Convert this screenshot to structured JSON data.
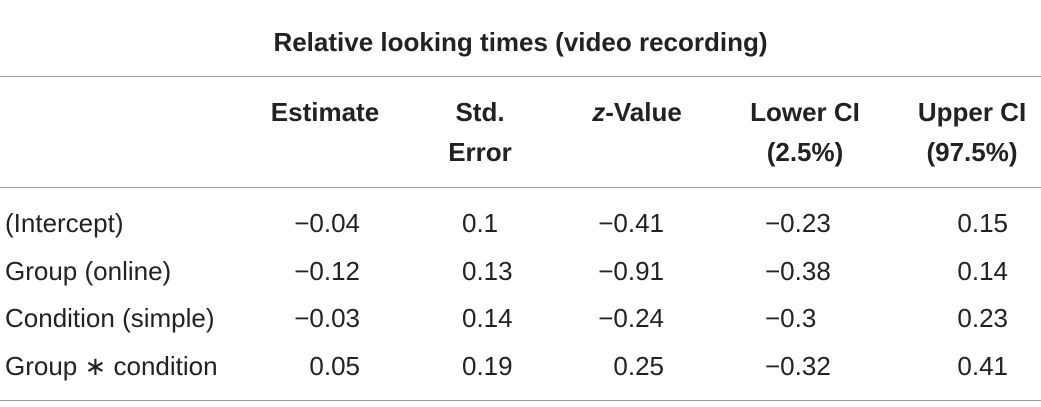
{
  "table": {
    "title": "Relative looking times (video recording)",
    "columns": [
      {
        "lines": [
          "Estimate"
        ]
      },
      {
        "lines": [
          "Std.",
          "Error"
        ]
      },
      {
        "italic": "z",
        "rest": "-Value"
      },
      {
        "lines": [
          "Lower CI",
          "(2.5%)"
        ]
      },
      {
        "lines": [
          "Upper CI",
          "(97.5%)"
        ]
      }
    ],
    "rows": [
      [
        "(Intercept)",
        "−0.04",
        "0.1",
        "−0.41",
        "−0.23",
        "0.15"
      ],
      [
        "Group (online)",
        "−0.12",
        "0.13",
        "−0.91",
        "−0.38",
        "0.14"
      ],
      [
        "Condition (simple)",
        "−0.03",
        "0.14",
        "−0.24",
        "−0.3",
        "0.23"
      ],
      [
        "Group ∗ condition",
        "0.05",
        "0.19",
        "0.25",
        "−0.32",
        "0.41"
      ]
    ]
  }
}
